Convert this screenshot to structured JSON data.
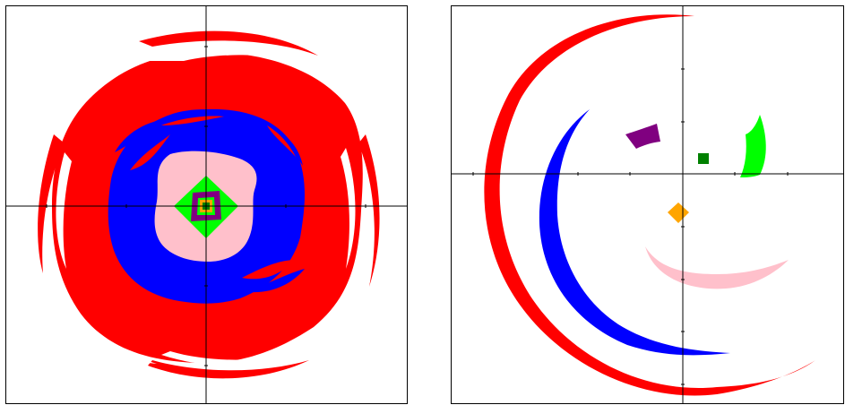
{
  "figure": {
    "left_panel": {
      "shapes": [
        {
          "name": "outer-red-swirl",
          "color": "#ff0000"
        },
        {
          "name": "blue-swirl",
          "color": "#0000ff"
        },
        {
          "name": "pink-swirl",
          "color": "#ffc0cb"
        },
        {
          "name": "green-diamond",
          "color": "#00ff00"
        },
        {
          "name": "purple-square",
          "color": "#800080"
        },
        {
          "name": "orange-square",
          "color": "#ffa500"
        },
        {
          "name": "dark-green-square",
          "color": "#008000"
        }
      ]
    },
    "right_panel": {
      "shapes": [
        {
          "name": "red-arc",
          "color": "#ff0000"
        },
        {
          "name": "blue-arc",
          "color": "#0000ff"
        },
        {
          "name": "pink-arc",
          "color": "#ffc0cb"
        },
        {
          "name": "purple-arc",
          "color": "#800080"
        },
        {
          "name": "green-crescent",
          "color": "#00ff00"
        },
        {
          "name": "dark-green-square",
          "color": "#008000"
        },
        {
          "name": "orange-diamond",
          "color": "#ffa500"
        }
      ]
    }
  }
}
